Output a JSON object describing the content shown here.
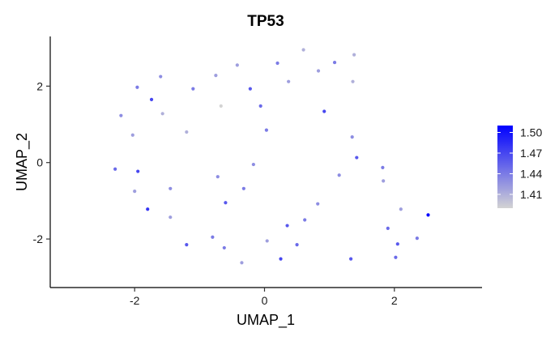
{
  "chart_data": {
    "type": "scatter",
    "title": "TP53",
    "xlabel": "UMAP_1",
    "ylabel": "UMAP_2",
    "xlim": [
      -3.3,
      3.35
    ],
    "ylim": [
      -3.27,
      3.3
    ],
    "x_ticks": [
      -2,
      0,
      2
    ],
    "x_tick_labels": [
      "-2",
      "0",
      "2"
    ],
    "y_ticks": [
      -2,
      0,
      2
    ],
    "y_tick_labels": [
      "-2",
      "0",
      "2"
    ],
    "grid": false,
    "legend": {
      "position": "right",
      "type": "colorbar",
      "range": [
        1.39,
        1.51
      ],
      "ticks": [
        1.41,
        1.44,
        1.47,
        1.5
      ],
      "tick_labels": [
        "1.41",
        "1.44",
        "1.47",
        "1.50"
      ],
      "low_color": "#d3d3d3",
      "high_color": "#0000ff"
    },
    "points": [
      {
        "x": 0.6,
        "y": 2.95,
        "v": 1.41
      },
      {
        "x": 1.38,
        "y": 2.82,
        "v": 1.41
      },
      {
        "x": 1.08,
        "y": 2.62,
        "v": 1.44
      },
      {
        "x": 0.2,
        "y": 2.6,
        "v": 1.44
      },
      {
        "x": -0.42,
        "y": 2.55,
        "v": 1.42
      },
      {
        "x": 0.83,
        "y": 2.4,
        "v": 1.42
      },
      {
        "x": -1.6,
        "y": 2.25,
        "v": 1.43
      },
      {
        "x": -0.75,
        "y": 2.28,
        "v": 1.42
      },
      {
        "x": 0.37,
        "y": 2.12,
        "v": 1.42
      },
      {
        "x": 1.36,
        "y": 2.12,
        "v": 1.41
      },
      {
        "x": -1.96,
        "y": 1.97,
        "v": 1.44
      },
      {
        "x": -1.1,
        "y": 1.93,
        "v": 1.44
      },
      {
        "x": -0.22,
        "y": 1.93,
        "v": 1.46
      },
      {
        "x": -1.74,
        "y": 1.65,
        "v": 1.47
      },
      {
        "x": -0.67,
        "y": 1.48,
        "v": 1.39
      },
      {
        "x": -0.06,
        "y": 1.48,
        "v": 1.45
      },
      {
        "x": -1.57,
        "y": 1.28,
        "v": 1.41
      },
      {
        "x": 0.92,
        "y": 1.34,
        "v": 1.47
      },
      {
        "x": -2.21,
        "y": 1.23,
        "v": 1.43
      },
      {
        "x": 0.03,
        "y": 0.85,
        "v": 1.44
      },
      {
        "x": -1.2,
        "y": 0.8,
        "v": 1.41
      },
      {
        "x": -2.03,
        "y": 0.72,
        "v": 1.42
      },
      {
        "x": 1.35,
        "y": 0.67,
        "v": 1.43
      },
      {
        "x": 1.42,
        "y": 0.13,
        "v": 1.46
      },
      {
        "x": -0.17,
        "y": -0.05,
        "v": 1.43
      },
      {
        "x": 1.82,
        "y": -0.13,
        "v": 1.44
      },
      {
        "x": -2.3,
        "y": -0.17,
        "v": 1.45
      },
      {
        "x": -1.95,
        "y": -0.23,
        "v": 1.47
      },
      {
        "x": 1.15,
        "y": -0.33,
        "v": 1.43
      },
      {
        "x": -0.72,
        "y": -0.37,
        "v": 1.43
      },
      {
        "x": 1.83,
        "y": -0.48,
        "v": 1.42
      },
      {
        "x": -0.32,
        "y": -0.68,
        "v": 1.44
      },
      {
        "x": -1.45,
        "y": -0.68,
        "v": 1.43
      },
      {
        "x": -2.0,
        "y": -0.75,
        "v": 1.42
      },
      {
        "x": -0.6,
        "y": -1.05,
        "v": 1.46
      },
      {
        "x": 0.82,
        "y": -1.08,
        "v": 1.43
      },
      {
        "x": 2.1,
        "y": -1.22,
        "v": 1.42
      },
      {
        "x": -1.8,
        "y": -1.22,
        "v": 1.48
      },
      {
        "x": 2.52,
        "y": -1.37,
        "v": 1.51
      },
      {
        "x": -1.45,
        "y": -1.43,
        "v": 1.42
      },
      {
        "x": 0.62,
        "y": -1.5,
        "v": 1.44
      },
      {
        "x": 0.35,
        "y": -1.65,
        "v": 1.46
      },
      {
        "x": 1.9,
        "y": -1.72,
        "v": 1.45
      },
      {
        "x": -0.8,
        "y": -1.95,
        "v": 1.44
      },
      {
        "x": 2.35,
        "y": -1.98,
        "v": 1.44
      },
      {
        "x": 0.04,
        "y": -2.05,
        "v": 1.42
      },
      {
        "x": 2.05,
        "y": -2.13,
        "v": 1.46
      },
      {
        "x": -1.2,
        "y": -2.15,
        "v": 1.46
      },
      {
        "x": 0.5,
        "y": -2.15,
        "v": 1.45
      },
      {
        "x": -0.62,
        "y": -2.23,
        "v": 1.44
      },
      {
        "x": 2.02,
        "y": -2.48,
        "v": 1.45
      },
      {
        "x": 0.25,
        "y": -2.52,
        "v": 1.47
      },
      {
        "x": 1.33,
        "y": -2.52,
        "v": 1.46
      },
      {
        "x": -0.35,
        "y": -2.62,
        "v": 1.42
      }
    ]
  }
}
